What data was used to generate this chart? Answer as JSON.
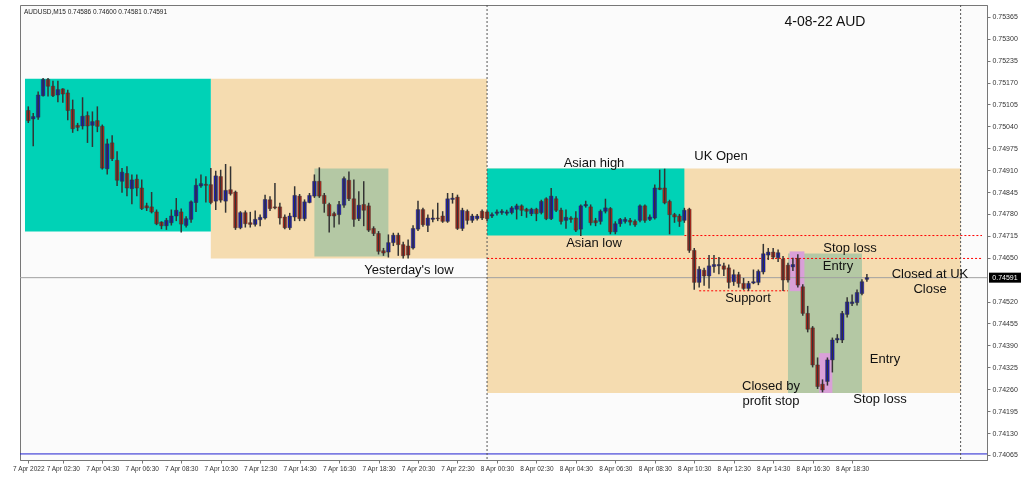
{
  "chart_data": {
    "type": "candlestick",
    "title": "4-08-22  AUD",
    "x": [
      "2022-04-07T00:45",
      "2022-04-07T01:00",
      "2022-04-07T01:15",
      "2022-04-07T01:30",
      "2022-04-07T01:45",
      "2022-04-07T02:00",
      "2022-04-07T02:15",
      "2022-04-07T02:30",
      "2022-04-07T02:45",
      "2022-04-07T03:00",
      "2022-04-07T03:15",
      "2022-04-07T03:30",
      "2022-04-07T03:45",
      "2022-04-07T04:00",
      "2022-04-07T04:15",
      "2022-04-07T04:30",
      "2022-04-07T04:45",
      "2022-04-07T05:00",
      "2022-04-07T05:15",
      "2022-04-07T05:30",
      "2022-04-07T05:45",
      "2022-04-07T06:00",
      "2022-04-07T06:15",
      "2022-04-07T06:30",
      "2022-04-07T06:45",
      "2022-04-07T07:00",
      "2022-04-07T07:15",
      "2022-04-07T07:30",
      "2022-04-07T07:45",
      "2022-04-07T08:00",
      "2022-04-07T08:15",
      "2022-04-07T08:30",
      "2022-04-07T08:45",
      "2022-04-07T09:00",
      "2022-04-07T09:15",
      "2022-04-07T09:30",
      "2022-04-07T09:45",
      "2022-04-07T10:00",
      "2022-04-07T10:15",
      "2022-04-07T10:30",
      "2022-04-07T10:45",
      "2022-04-07T11:00",
      "2022-04-07T11:15",
      "2022-04-07T11:30",
      "2022-04-07T11:45",
      "2022-04-07T12:00",
      "2022-04-07T12:15",
      "2022-04-07T12:30",
      "2022-04-07T12:45",
      "2022-04-07T13:00",
      "2022-04-07T13:15",
      "2022-04-07T13:30",
      "2022-04-07T13:45",
      "2022-04-07T14:00",
      "2022-04-07T14:15",
      "2022-04-07T14:30",
      "2022-04-07T14:45",
      "2022-04-07T15:00",
      "2022-04-07T15:15",
      "2022-04-07T15:30",
      "2022-04-07T15:45",
      "2022-04-07T16:00",
      "2022-04-07T16:15",
      "2022-04-07T16:30",
      "2022-04-07T16:45",
      "2022-04-07T17:00",
      "2022-04-07T17:15",
      "2022-04-07T17:30",
      "2022-04-07T17:45",
      "2022-04-07T18:00",
      "2022-04-07T18:15",
      "2022-04-07T18:30",
      "2022-04-07T18:45",
      "2022-04-07T19:00",
      "2022-04-07T19:15",
      "2022-04-07T19:30",
      "2022-04-07T19:45",
      "2022-04-07T20:00",
      "2022-04-07T20:15",
      "2022-04-07T20:30",
      "2022-04-07T20:45",
      "2022-04-07T21:00",
      "2022-04-07T21:15",
      "2022-04-07T21:30",
      "2022-04-07T21:45",
      "2022-04-07T22:00",
      "2022-04-07T22:15",
      "2022-04-07T22:30",
      "2022-04-07T22:45",
      "2022-04-07T23:00",
      "2022-04-07T23:15",
      "2022-04-07T23:30",
      "2022-04-07T23:45",
      "2022-04-08T00:00",
      "2022-04-08T00:15",
      "2022-04-08T00:30",
      "2022-04-08T00:45",
      "2022-04-08T01:00",
      "2022-04-08T01:15",
      "2022-04-08T01:30",
      "2022-04-08T01:45",
      "2022-04-08T02:00",
      "2022-04-08T02:15",
      "2022-04-08T02:30",
      "2022-04-08T02:45",
      "2022-04-08T03:00",
      "2022-04-08T03:15",
      "2022-04-08T03:30",
      "2022-04-08T03:45",
      "2022-04-08T04:00",
      "2022-04-08T04:15",
      "2022-04-08T04:30",
      "2022-04-08T04:45",
      "2022-04-08T05:00",
      "2022-04-08T05:15",
      "2022-04-08T05:30",
      "2022-04-08T05:45",
      "2022-04-08T06:00",
      "2022-04-08T06:15",
      "2022-04-08T06:30",
      "2022-04-08T06:45",
      "2022-04-08T07:00",
      "2022-04-08T07:15",
      "2022-04-08T07:30",
      "2022-04-08T07:45",
      "2022-04-08T08:00",
      "2022-04-08T08:15",
      "2022-04-08T08:30",
      "2022-04-08T08:45",
      "2022-04-08T09:00",
      "2022-04-08T09:15",
      "2022-04-08T09:30",
      "2022-04-08T09:45",
      "2022-04-08T10:00",
      "2022-04-08T10:15",
      "2022-04-08T10:30",
      "2022-04-08T10:45",
      "2022-04-08T11:00",
      "2022-04-08T11:15",
      "2022-04-08T11:30",
      "2022-04-08T11:45",
      "2022-04-08T12:00",
      "2022-04-08T12:15",
      "2022-04-08T12:30",
      "2022-04-08T12:45",
      "2022-04-08T13:00",
      "2022-04-08T13:15",
      "2022-04-08T13:30",
      "2022-04-08T13:45",
      "2022-04-08T14:00",
      "2022-04-08T14:15",
      "2022-04-08T14:30",
      "2022-04-08T14:45",
      "2022-04-08T15:00",
      "2022-04-08T15:15",
      "2022-04-08T15:30",
      "2022-04-08T15:45",
      "2022-04-08T16:00",
      "2022-04-08T16:15",
      "2022-04-08T16:30",
      "2022-04-08T16:45",
      "2022-04-08T17:00",
      "2022-04-08T17:15",
      "2022-04-08T17:30",
      "2022-04-08T17:45",
      "2022-04-08T18:00",
      "2022-04-08T18:15",
      "2022-04-08T18:30",
      "2022-04-08T18:45",
      "2022-04-08T19:00",
      "2022-04-08T19:15"
    ],
    "ohlc": [
      [
        0.75087,
        0.75097,
        0.75052,
        0.75057
      ],
      [
        0.75062,
        0.75077,
        0.74983,
        0.75069
      ],
      [
        0.75067,
        0.75141,
        0.75062,
        0.75133
      ],
      [
        0.75131,
        0.75181,
        0.75131,
        0.75179
      ],
      [
        0.75179,
        0.75181,
        0.75131,
        0.75159
      ],
      [
        0.75159,
        0.75173,
        0.75129,
        0.75131
      ],
      [
        0.75133,
        0.75173,
        0.75114,
        0.75149
      ],
      [
        0.75151,
        0.75151,
        0.75112,
        0.75136
      ],
      [
        0.75139,
        0.75146,
        0.7506,
        0.75087
      ],
      [
        0.7509,
        0.75117,
        0.75023,
        0.75033
      ],
      [
        0.75043,
        0.75048,
        0.75028,
        0.75037
      ],
      [
        0.75041,
        0.75124,
        0.75033,
        0.7507
      ],
      [
        0.75072,
        0.75082,
        0.74993,
        0.75041
      ],
      [
        0.75043,
        0.75082,
        0.74981,
        0.75054
      ],
      [
        0.75057,
        0.75097,
        0.75025,
        0.7504
      ],
      [
        0.7504,
        0.75043,
        0.74914,
        0.74916
      ],
      [
        0.74914,
        0.75001,
        0.74899,
        0.74988
      ],
      [
        0.74991,
        0.75011,
        0.74939,
        0.74944
      ],
      [
        0.74939,
        0.74964,
        0.74865,
        0.7488
      ],
      [
        0.74877,
        0.74914,
        0.74845,
        0.74904
      ],
      [
        0.749,
        0.74919,
        0.74835,
        0.74857
      ],
      [
        0.74855,
        0.74895,
        0.74811,
        0.74881
      ],
      [
        0.74883,
        0.74895,
        0.74835,
        0.74857
      ],
      [
        0.74857,
        0.7488,
        0.74794,
        0.74796
      ],
      [
        0.74804,
        0.74811,
        0.74791,
        0.74798
      ],
      [
        0.74801,
        0.74843,
        0.74784,
        0.74786
      ],
      [
        0.74786,
        0.74791,
        0.74749,
        0.74751
      ],
      [
        0.74756,
        0.74756,
        0.74737,
        0.74745
      ],
      [
        0.74745,
        0.74766,
        0.74735,
        0.74761
      ],
      [
        0.74754,
        0.74791,
        0.74748,
        0.74774
      ],
      [
        0.74774,
        0.74825,
        0.74761,
        0.74791
      ],
      [
        0.74786,
        0.74794,
        0.74727,
        0.7475
      ],
      [
        0.74746,
        0.74771,
        0.74742,
        0.74766
      ],
      [
        0.74764,
        0.74818,
        0.74756,
        0.74816
      ],
      [
        0.74814,
        0.74883,
        0.74788,
        0.74865
      ],
      [
        0.74863,
        0.74895,
        0.7486,
        0.7487
      ],
      [
        0.74868,
        0.7489,
        0.74816,
        0.74865
      ],
      [
        0.74867,
        0.74914,
        0.74811,
        0.74814
      ],
      [
        0.74818,
        0.74906,
        0.74794,
        0.74893
      ],
      [
        0.74891,
        0.74909,
        0.74816,
        0.74821
      ],
      [
        0.74818,
        0.74926,
        0.74786,
        0.7485
      ],
      [
        0.74852,
        0.74919,
        0.74837,
        0.7484
      ],
      [
        0.74845,
        0.74847,
        0.74735,
        0.74739
      ],
      [
        0.74739,
        0.74786,
        0.74737,
        0.74784
      ],
      [
        0.74784,
        0.74788,
        0.74742,
        0.74751
      ],
      [
        0.74754,
        0.74784,
        0.74742,
        0.74749
      ],
      [
        0.74749,
        0.74788,
        0.74745,
        0.74764
      ],
      [
        0.74763,
        0.74776,
        0.74746,
        0.7477
      ],
      [
        0.74768,
        0.74835,
        0.74766,
        0.74823
      ],
      [
        0.74822,
        0.7483,
        0.74791,
        0.74796
      ],
      [
        0.74801,
        0.7487,
        0.74796,
        0.74798
      ],
      [
        0.74801,
        0.74811,
        0.74751,
        0.74768
      ],
      [
        0.74771,
        0.74776,
        0.74737,
        0.74739
      ],
      [
        0.74739,
        0.74781,
        0.74735,
        0.74774
      ],
      [
        0.74771,
        0.7486,
        0.74761,
        0.74835
      ],
      [
        0.74833,
        0.74837,
        0.74761,
        0.74766
      ],
      [
        0.74766,
        0.74821,
        0.74761,
        0.74816
      ],
      [
        0.74814,
        0.7484,
        0.74814,
        0.74835
      ],
      [
        0.74833,
        0.74895,
        0.7483,
        0.74877
      ],
      [
        0.74877,
        0.74916,
        0.7483,
        0.74833
      ],
      [
        0.74835,
        0.7484,
        0.74786,
        0.74811
      ],
      [
        0.74808,
        0.74811,
        0.74727,
        0.74774
      ],
      [
        0.74781,
        0.74784,
        0.74742,
        0.74774
      ],
      [
        0.74778,
        0.74816,
        0.74751,
        0.74808
      ],
      [
        0.74806,
        0.74889,
        0.74801,
        0.74885
      ],
      [
        0.7488,
        0.74904,
        0.74821,
        0.74825
      ],
      [
        0.74825,
        0.7488,
        0.74744,
        0.74764
      ],
      [
        0.74766,
        0.74845,
        0.74761,
        0.74806
      ],
      [
        0.74808,
        0.74875,
        0.74746,
        0.74791
      ],
      [
        0.74804,
        0.74811,
        0.74729,
        0.74732
      ],
      [
        0.74737,
        0.74741,
        0.74717,
        0.74722
      ],
      [
        0.74722,
        0.74727,
        0.74662,
        0.74669
      ],
      [
        0.74671,
        0.74677,
        0.74658,
        0.74664
      ],
      [
        0.74667,
        0.74717,
        0.74653,
        0.74695
      ],
      [
        0.74695,
        0.74722,
        0.74687,
        0.74717
      ],
      [
        0.74717,
        0.74722,
        0.74658,
        0.74689
      ],
      [
        0.74689,
        0.74695,
        0.7465,
        0.74656
      ],
      [
        0.74685,
        0.74702,
        0.7465,
        0.74658
      ],
      [
        0.74679,
        0.74744,
        0.74677,
        0.74737
      ],
      [
        0.74735,
        0.74817,
        0.74732,
        0.74793
      ],
      [
        0.74793,
        0.74796,
        0.74744,
        0.74748
      ],
      [
        0.74746,
        0.74776,
        0.74729,
        0.74768
      ],
      [
        0.74764,
        0.74791,
        0.74758,
        0.74768
      ],
      [
        0.74768,
        0.74811,
        0.74761,
        0.74766
      ],
      [
        0.74774,
        0.74786,
        0.74756,
        0.74758
      ],
      [
        0.74758,
        0.7484,
        0.74756,
        0.74825
      ],
      [
        0.74823,
        0.7484,
        0.74813,
        0.74827
      ],
      [
        0.7483,
        0.74835,
        0.74735,
        0.74737
      ],
      [
        0.74737,
        0.74796,
        0.74732,
        0.74791
      ],
      [
        0.74788,
        0.74791,
        0.74751,
        0.74761
      ],
      [
        0.74761,
        0.74778,
        0.74756,
        0.74774
      ],
      [
        0.74766,
        0.74778,
        0.74763,
        0.74774
      ],
      [
        0.74788,
        0.74791,
        0.74764,
        0.74768
      ],
      [
        0.74786,
        0.74788,
        0.74761,
        0.74766
      ],
      [
        0.74774,
        0.74782,
        0.7477,
        0.74778
      ],
      [
        0.74782,
        0.74791,
        0.74778,
        0.74786
      ],
      [
        0.74784,
        0.74792,
        0.7478,
        0.74788
      ],
      [
        0.74782,
        0.7479,
        0.74778,
        0.74786
      ],
      [
        0.74784,
        0.74801,
        0.74781,
        0.74798
      ],
      [
        0.74794,
        0.74808,
        0.74766,
        0.74804
      ],
      [
        0.74804,
        0.74806,
        0.74776,
        0.74791
      ],
      [
        0.74794,
        0.74796,
        0.74771,
        0.74788
      ],
      [
        0.74781,
        0.74796,
        0.74776,
        0.74794
      ],
      [
        0.74794,
        0.74796,
        0.74761,
        0.74781
      ],
      [
        0.74784,
        0.7482,
        0.74781,
        0.74817
      ],
      [
        0.74825,
        0.74827,
        0.74764,
        0.74766
      ],
      [
        0.74766,
        0.74855,
        0.74764,
        0.74833
      ],
      [
        0.74825,
        0.7483,
        0.74788,
        0.74791
      ],
      [
        0.74791,
        0.74796,
        0.74751,
        0.74758
      ],
      [
        0.74761,
        0.74791,
        0.74738,
        0.7477
      ],
      [
        0.74768,
        0.74771,
        0.74756,
        0.74764
      ],
      [
        0.74768,
        0.74786,
        0.74729,
        0.74732
      ],
      [
        0.74735,
        0.74806,
        0.74717,
        0.74804
      ],
      [
        0.74804,
        0.74817,
        0.74801,
        0.74808
      ],
      [
        0.74801,
        0.74806,
        0.74748,
        0.74754
      ],
      [
        0.7476,
        0.74766,
        0.74746,
        0.74754
      ],
      [
        0.74758,
        0.74791,
        0.74751,
        0.74788
      ],
      [
        0.74788,
        0.74823,
        0.74784,
        0.74798
      ],
      [
        0.74796,
        0.74798,
        0.74722,
        0.74727
      ],
      [
        0.74727,
        0.74756,
        0.74722,
        0.74751
      ],
      [
        0.74751,
        0.74766,
        0.74744,
        0.74764
      ],
      [
        0.74758,
        0.74768,
        0.74754,
        0.74764
      ],
      [
        0.74761,
        0.74766,
        0.74748,
        0.74756
      ],
      [
        0.74758,
        0.74761,
        0.74744,
        0.74748
      ],
      [
        0.74761,
        0.74806,
        0.74758,
        0.74804
      ],
      [
        0.74804,
        0.74806,
        0.74756,
        0.74761
      ],
      [
        0.74764,
        0.74776,
        0.74761,
        0.74771
      ],
      [
        0.74768,
        0.74865,
        0.74766,
        0.74857
      ],
      [
        0.74857,
        0.74909,
        0.74853,
        0.74853
      ],
      [
        0.74857,
        0.74912,
        0.74811,
        0.74813
      ],
      [
        0.74817,
        0.7482,
        0.74722,
        0.74778
      ],
      [
        0.74778,
        0.74781,
        0.74756,
        0.74771
      ],
      [
        0.74774,
        0.74778,
        0.74744,
        0.74758
      ],
      [
        0.74761,
        0.74796,
        0.74756,
        0.74791
      ],
      [
        0.74794,
        0.74796,
        0.74667,
        0.74672
      ],
      [
        0.74672,
        0.74677,
        0.74557,
        0.74577
      ],
      [
        0.74577,
        0.74623,
        0.74564,
        0.74616
      ],
      [
        0.74613,
        0.74618,
        0.74569,
        0.74596
      ],
      [
        0.74596,
        0.74656,
        0.74561,
        0.74626
      ],
      [
        0.74624,
        0.74656,
        0.74608,
        0.7463
      ],
      [
        0.74626,
        0.7465,
        0.74603,
        0.7463
      ],
      [
        0.74626,
        0.74633,
        0.74598,
        0.74616
      ],
      [
        0.7462,
        0.74628,
        0.74561,
        0.74577
      ],
      [
        0.74579,
        0.74613,
        0.74569,
        0.746
      ],
      [
        0.746,
        0.74606,
        0.74564,
        0.74574
      ],
      [
        0.74574,
        0.74588,
        0.74557,
        0.74559
      ],
      [
        0.74559,
        0.74579,
        0.74554,
        0.74574
      ],
      [
        0.74575,
        0.74613,
        0.74574,
        0.74579
      ],
      [
        0.74577,
        0.74613,
        0.74571,
        0.7461
      ],
      [
        0.74608,
        0.74689,
        0.74603,
        0.74662
      ],
      [
        0.74658,
        0.74677,
        0.74646,
        0.74667
      ],
      [
        0.74667,
        0.74677,
        0.74648,
        0.74652
      ],
      [
        0.7465,
        0.74672,
        0.7464,
        0.74665
      ],
      [
        0.74646,
        0.74653,
        0.74554,
        0.74584
      ],
      [
        0.74628,
        0.74633,
        0.74579,
        0.74584
      ],
      [
        0.74623,
        0.74648,
        0.74613,
        0.7463
      ],
      [
        0.74648,
        0.74658,
        0.74564,
        0.74569
      ],
      [
        0.74564,
        0.74569,
        0.7448,
        0.74485
      ],
      [
        0.74485,
        0.74505,
        0.74431,
        0.74438
      ],
      [
        0.74442,
        0.74445,
        0.74327,
        0.74332
      ],
      [
        0.74332,
        0.74352,
        0.74263,
        0.74268
      ],
      [
        0.74275,
        0.74287,
        0.74253,
        0.74258
      ],
      [
        0.74283,
        0.74352,
        0.74273,
        0.74347
      ],
      [
        0.74347,
        0.74411,
        0.74312,
        0.74406
      ],
      [
        0.74406,
        0.74421,
        0.74399,
        0.74411
      ],
      [
        0.74406,
        0.7449,
        0.74399,
        0.74485
      ],
      [
        0.74482,
        0.74531,
        0.74475,
        0.74519
      ],
      [
        0.74514,
        0.74539,
        0.74509,
        0.74519
      ],
      [
        0.74517,
        0.74554,
        0.74511,
        0.74547
      ],
      [
        0.74544,
        0.74584,
        0.74541,
        0.74579
      ],
      [
        0.74586,
        0.746,
        0.74581,
        0.74591
      ]
    ],
    "colors": [
      "#c0281a",
      "#1a1acd",
      "#1a1acd",
      "#1a1acd",
      "#c0281a",
      "#c0281a",
      "#1a1acd",
      "#c0281a",
      "#c0281a",
      "#c0281a",
      "#c0281a",
      "#1a1acd",
      "#c0281a",
      "#1a1acd",
      "#c0281a",
      "#c0281a",
      "#1a1acd",
      "#c0281a",
      "#c0281a",
      "#1a1acd",
      "#c0281a",
      "#1a1acd",
      "#c0281a",
      "#c0281a",
      "#c0281a",
      "#c0281a",
      "#c0281a",
      "#c0281a",
      "#1a1acd",
      "#1a1acd",
      "#1a1acd",
      "#c0281a",
      "#1a1acd",
      "#1a1acd",
      "#1a1acd",
      "#1a1acd",
      "#c0281a",
      "#c0281a",
      "#1a1acd",
      "#c0281a",
      "#1a1acd",
      "#c0281a",
      "#c0281a",
      "#1a1acd",
      "#c0281a",
      "#c0281a",
      "#1a1acd",
      "#1a1acd",
      "#1a1acd",
      "#c0281a",
      "#c0281a",
      "#c0281a",
      "#c0281a",
      "#1a1acd",
      "#1a1acd",
      "#c0281a",
      "#1a1acd",
      "#1a1acd",
      "#1a1acd",
      "#c0281a",
      "#c0281a",
      "#c0281a",
      "#c0281a",
      "#1a1acd",
      "#1a1acd",
      "#c0281a",
      "#c0281a",
      "#1a1acd",
      "#c0281a",
      "#c0281a",
      "#c0281a",
      "#c0281a",
      "#c0281a",
      "#1a1acd",
      "#1a1acd",
      "#c0281a",
      "#c0281a",
      "#c0281a",
      "#1a1acd",
      "#1a1acd",
      "#c0281a",
      "#1a1acd",
      "#1a1acd",
      "#c0281a",
      "#c0281a",
      "#1a1acd",
      "#1a1acd",
      "#c0281a",
      "#1a1acd",
      "#c0281a",
      "#1a1acd",
      "#1a1acd",
      "#c0281a",
      "#c0281a",
      "#1a1acd",
      "#1a1acd",
      "#1a1acd",
      "#1a1acd",
      "#1a1acd",
      "#1a1acd",
      "#c0281a",
      "#c0281a",
      "#1a1acd",
      "#c0281a",
      "#1a1acd",
      "#c0281a",
      "#1a1acd",
      "#c0281a",
      "#c0281a",
      "#1a1acd",
      "#c0281a",
      "#c0281a",
      "#1a1acd",
      "#1a1acd",
      "#c0281a",
      "#c0281a",
      "#1a1acd",
      "#1a1acd",
      "#c0281a",
      "#1a1acd",
      "#1a1acd",
      "#1a1acd",
      "#c0281a",
      "#c0281a",
      "#1a1acd",
      "#c0281a",
      "#1a1acd",
      "#1a1acd",
      "#c0281a",
      "#c0281a",
      "#c0281a",
      "#c0281a",
      "#c0281a",
      "#1a1acd",
      "#c0281a",
      "#c0281a",
      "#1a1acd",
      "#c0281a",
      "#1a1acd",
      "#1a1acd",
      "#1a1acd",
      "#c0281a",
      "#c0281a",
      "#1a1acd",
      "#c0281a",
      "#c0281a",
      "#1a1acd",
      "#1a1acd",
      "#1a1acd",
      "#1a1acd",
      "#1a1acd",
      "#c0281a",
      "#1a1acd",
      "#c0281a",
      "#c0281a",
      "#1a1acd",
      "#c0281a",
      "#c0281a",
      "#c0281a",
      "#c0281a",
      "#c0281a",
      "#c0281a",
      "#1a1acd",
      "#1a1acd",
      "#1a1acd",
      "#1a1acd",
      "#1a1acd",
      "#1a1acd",
      "#1a1acd",
      "#1a1acd",
      "#1a1acd"
    ],
    "xlim": [
      "2022-04-07T00:35",
      "2022-04-09T01:05"
    ],
    "xticks": [
      {
        "value": "2022-04-07T00:45",
        "label": "7 Apr 2022"
      },
      {
        "value": "2022-04-07T02:30",
        "label": "7 Apr 02:30"
      },
      {
        "value": "2022-04-07T04:30",
        "label": "7 Apr 04:30"
      },
      {
        "value": "2022-04-07T06:30",
        "label": "7 Apr 06:30"
      },
      {
        "value": "2022-04-07T08:30",
        "label": "7 Apr 08:30"
      },
      {
        "value": "2022-04-07T10:30",
        "label": "7 Apr 10:30"
      },
      {
        "value": "2022-04-07T12:30",
        "label": "7 Apr 12:30"
      },
      {
        "value": "2022-04-07T14:30",
        "label": "7 Apr 14:30"
      },
      {
        "value": "2022-04-07T16:30",
        "label": "7 Apr 16:30"
      },
      {
        "value": "2022-04-07T18:30",
        "label": "7 Apr 18:30"
      },
      {
        "value": "2022-04-07T20:30",
        "label": "7 Apr 20:30"
      },
      {
        "value": "2022-04-07T22:30",
        "label": "7 Apr 22:30"
      },
      {
        "value": "2022-04-08T00:30",
        "label": "8 Apr 00:30"
      },
      {
        "value": "2022-04-08T02:30",
        "label": "8 Apr 02:30"
      },
      {
        "value": "2022-04-08T04:30",
        "label": "8 Apr 04:30"
      },
      {
        "value": "2022-04-08T06:30",
        "label": "8 Apr 06:30"
      },
      {
        "value": "2022-04-08T08:30",
        "label": "8 Apr 08:30"
      },
      {
        "value": "2022-04-08T10:30",
        "label": "8 Apr 10:30"
      },
      {
        "value": "2022-04-08T12:30",
        "label": "8 Apr 12:30"
      },
      {
        "value": "2022-04-08T14:30",
        "label": "8 Apr 14:30"
      },
      {
        "value": "2022-04-08T16:30",
        "label": "8 Apr 16:30"
      },
      {
        "value": "2022-04-08T18:30",
        "label": "8 Apr 18:30"
      }
    ],
    "ylim": [
      0.7405,
      0.754
    ],
    "yticks": [
      0.75365,
      {
        "value": 0.753,
        "label": "0.75300"
      },
      0.75235,
      {
        "value": 0.7517,
        "label": "0.75170"
      },
      0.75105,
      {
        "value": 0.7504,
        "label": "0.75040"
      },
      0.74975,
      {
        "value": 0.7491,
        "label": "0.74910"
      },
      0.74845,
      {
        "value": 0.7478,
        "label": "0.74780"
      },
      0.74715,
      {
        "value": 0.7465,
        "label": "0.74650"
      },
      {
        "value": 0.7452,
        "label": "0.74520"
      },
      0.74455,
      {
        "value": 0.7439,
        "label": "0.74390"
      },
      0.74325,
      {
        "value": 0.7426,
        "label": "0.74260"
      },
      0.74195,
      {
        "value": 0.7413,
        "label": "0.74130"
      },
      0.74065
    ],
    "series": [
      {
        "type": "area",
        "color": "#f5dcb0",
        "x": [
          "2022-04-07T10:00",
          "2022-04-08T00:00"
        ],
        "values": [
          null,
          null
        ],
        "lower": [
          0.74648,
          0.74648
        ],
        "upper": [
          0.75181,
          0.75181
        ]
      },
      {
        "type": "area",
        "color": "#f5dcb0",
        "x": [
          "2022-04-08T00:00",
          "2022-04-09T00:00"
        ],
        "values": [
          null,
          null
        ],
        "lower": [
          0.74249,
          0.74249
        ],
        "upper": [
          0.74915,
          0.74915
        ]
      },
      {
        "type": "area",
        "color": "#00d2b6",
        "x": [
          "2022-04-07T00:35",
          "2022-04-07T10:00"
        ],
        "values": [
          null,
          null
        ],
        "lower": [
          0.74728,
          0.74728
        ],
        "upper": [
          0.75181,
          0.75181
        ]
      },
      {
        "type": "area",
        "color": "#00d2b6",
        "x": [
          "2022-04-08T00:00",
          "2022-04-08T10:00"
        ],
        "values": [
          null,
          null
        ],
        "lower": [
          0.74716,
          0.74716
        ],
        "upper": [
          0.74915,
          0.74915
        ]
      },
      {
        "type": "area",
        "color": "#b4c8a4",
        "x": [
          "2022-04-07T15:15",
          "2022-04-07T19:00"
        ],
        "values": [
          null,
          null
        ],
        "lower": [
          0.74654,
          0.74654
        ],
        "upper": [
          0.74915,
          0.74915
        ]
      },
      {
        "type": "area",
        "color": "#b4c8a4",
        "x": [
          "2022-04-08T15:15",
          "2022-04-08T19:00"
        ],
        "values": [
          null,
          null
        ],
        "lower": [
          0.74249,
          0.74249
        ],
        "upper": [
          0.74663,
          0.74663
        ]
      },
      {
        "type": "area",
        "color": "#d9a0d8",
        "x": [
          "2022-04-08T15:20",
          "2022-04-08T16:05"
        ],
        "values": [
          null,
          null
        ],
        "lower": [
          0.74551,
          0.74551
        ],
        "upper": [
          0.74669,
          0.74669
        ]
      },
      {
        "type": "area",
        "color": "#d9a0d8",
        "x": [
          "2022-04-08T16:50",
          "2022-04-08T17:30"
        ],
        "values": [
          null,
          null
        ],
        "lower": [
          0.74249,
          0.74249
        ],
        "upper": [
          0.74367,
          0.74367
        ]
      },
      {
        "type": "line",
        "color": "#ff0000",
        "line_style": "dotted",
        "x": [
          "2022-04-08T10:00",
          "2022-04-09T01:05"
        ],
        "values": [
          0.74716,
          0.74716
        ]
      },
      {
        "type": "line",
        "color": "#ff0000",
        "line_style": "dotted",
        "x": [
          "2022-04-08T00:00",
          "2022-04-09T01:05"
        ],
        "values": [
          0.74648,
          0.74648
        ]
      },
      {
        "type": "line",
        "color": "#ff0000",
        "line_style": "dotted",
        "x": [
          "2022-04-08T10:45",
          "2022-04-08T15:15"
        ],
        "values": [
          0.74552,
          0.74552
        ]
      }
    ],
    "ref_lines": [
      {
        "axis": "y",
        "value": 0.74591,
        "label": "0.74591",
        "color": "#a0a0a0",
        "line_style": "solid"
      },
      {
        "axis": "y",
        "value": 0.74068,
        "color": "#2020d0",
        "line_style": "solid"
      },
      {
        "axis": "x",
        "value": "2022-04-08T00:00",
        "color": "#555555",
        "line_style": "dotted"
      },
      {
        "axis": "x",
        "value": "2022-04-09T00:00",
        "color": "#555555",
        "line_style": "dotted"
      }
    ],
    "annotations": [
      "AUDUSD,M15  0.74586 0.74600 0.74581 0.74591",
      "Asian high",
      "Asian low",
      "Yesterday's low",
      "UK Open",
      "Support",
      "Stop loss",
      "Entry",
      "Closed at UK\nClose",
      "Entry",
      "Closed by\nprofit stop",
      "Stop loss"
    ]
  }
}
